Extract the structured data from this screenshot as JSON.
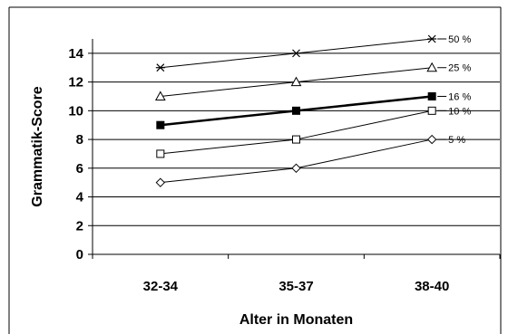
{
  "chart_data": {
    "type": "line",
    "categories": [
      "32-34",
      "35-37",
      "38-40"
    ],
    "xlabel": "Alter in Monaten",
    "ylabel": "Grammatik-Score",
    "ylim": [
      0,
      15
    ],
    "yticks": [
      0,
      2,
      4,
      6,
      8,
      10,
      12,
      14
    ],
    "grid": true,
    "legend": "inline-labels-right",
    "series": [
      {
        "name": "50 %",
        "values": [
          13,
          14,
          15
        ],
        "marker": "asterisk",
        "bold": false
      },
      {
        "name": "25 %",
        "values": [
          11,
          12,
          13
        ],
        "marker": "triangle-open",
        "bold": false
      },
      {
        "name": "16 %",
        "values": [
          9,
          10,
          11
        ],
        "marker": "square-filled",
        "bold": true
      },
      {
        "name": "10 %",
        "values": [
          7,
          8,
          10
        ],
        "marker": "square-open",
        "bold": false
      },
      {
        "name": "5 %",
        "values": [
          5,
          6,
          8
        ],
        "marker": "diamond-open",
        "bold": false
      }
    ],
    "colors": {
      "line": "#000000",
      "grid": "#000000",
      "background": "#ffffff"
    }
  }
}
